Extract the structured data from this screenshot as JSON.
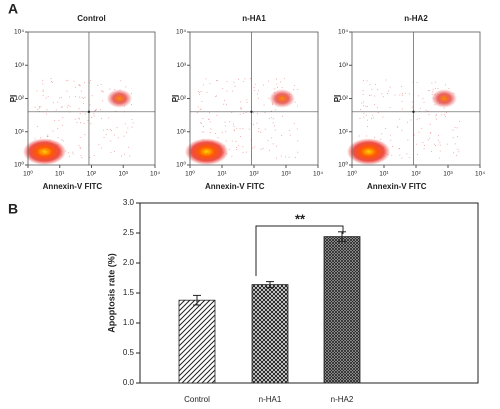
{
  "panels": [
    "A",
    "B"
  ],
  "chart_data": [
    {
      "type": "scatter",
      "title": "Control",
      "xlabel": "Annexin-V FITC",
      "ylabel": "PI",
      "log_scale": true,
      "xlim": [
        1,
        10000
      ],
      "ylim": [
        1,
        10000
      ],
      "xticks": [
        {
          "value": 1,
          "label": "10⁰"
        },
        {
          "value": 10,
          "label": "10¹"
        },
        {
          "value": 100,
          "label": "10²"
        },
        {
          "value": 1000,
          "label": "10³"
        },
        {
          "value": 10000,
          "label": "10⁴"
        }
      ],
      "yticks": [
        {
          "value": 1,
          "label": "10⁰"
        },
        {
          "value": 10,
          "label": "10¹"
        },
        {
          "value": 100,
          "label": "10²"
        },
        {
          "value": 1000,
          "label": "10³"
        },
        {
          "value": 10000,
          "label": "10⁴"
        }
      ]
    },
    {
      "type": "scatter",
      "title": "n-HA1",
      "xlabel": "Annexin-V FITC",
      "ylabel": "PI",
      "log_scale": true,
      "xlim": [
        1,
        10000
      ],
      "ylim": [
        1,
        10000
      ],
      "xticks": [
        {
          "value": 1,
          "label": "10⁰"
        },
        {
          "value": 10,
          "label": "10¹"
        },
        {
          "value": 100,
          "label": "10²"
        },
        {
          "value": 1000,
          "label": "10³"
        },
        {
          "value": 10000,
          "label": "10⁴"
        }
      ],
      "yticks": [
        {
          "value": 1,
          "label": "10⁰"
        },
        {
          "value": 10,
          "label": "10¹"
        },
        {
          "value": 100,
          "label": "10²"
        },
        {
          "value": 1000,
          "label": "10³"
        },
        {
          "value": 10000,
          "label": "10⁴"
        }
      ]
    },
    {
      "type": "scatter",
      "title": "n-HA2",
      "xlabel": "Annexin-V FITC",
      "ylabel": "PI",
      "log_scale": true,
      "xlim": [
        1,
        10000
      ],
      "ylim": [
        1,
        10000
      ],
      "xticks": [
        {
          "value": 1,
          "label": "10⁰"
        },
        {
          "value": 10,
          "label": "10¹"
        },
        {
          "value": 100,
          "label": "10²"
        },
        {
          "value": 1000,
          "label": "10³"
        },
        {
          "value": 10000,
          "label": "10⁴"
        }
      ],
      "yticks": [
        {
          "value": 1,
          "label": "10⁰"
        },
        {
          "value": 10,
          "label": "10¹"
        },
        {
          "value": 100,
          "label": "10²"
        },
        {
          "value": 1000,
          "label": "10³"
        },
        {
          "value": 10000,
          "label": "10⁴"
        }
      ]
    },
    {
      "type": "bar",
      "ylabel": "Apoptosis rate (%)",
      "categories": [
        "Control",
        "n-HA1",
        "n-HA2"
      ],
      "values": [
        1.38,
        1.64,
        2.44
      ],
      "errors": [
        0.08,
        0.05,
        0.08
      ],
      "patterns": [
        "diagonal",
        "crosshatch",
        "dense-crosshatch"
      ],
      "color": "#222222",
      "ylim": [
        0,
        3
      ],
      "yticks": [
        {
          "value": 0,
          "label": "0.0"
        },
        {
          "value": 0.5,
          "label": "0.5"
        },
        {
          "value": 1,
          "label": "1.0"
        },
        {
          "value": 1.5,
          "label": "1.5"
        },
        {
          "value": 2,
          "label": "2.0"
        },
        {
          "value": 2.5,
          "label": "2.5"
        },
        {
          "value": 3,
          "label": "3.0"
        }
      ],
      "annotation": "**"
    }
  ]
}
